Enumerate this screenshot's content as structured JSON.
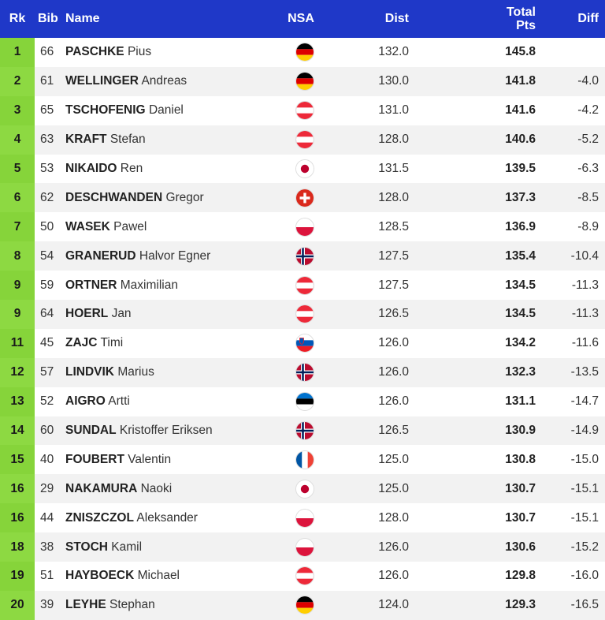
{
  "headers": {
    "rk": "Rk",
    "bib": "Bib",
    "name": "Name",
    "nsa": "NSA",
    "dist": "Dist",
    "total_line1": "Total",
    "total_line2": "Pts",
    "diff": "Diff"
  },
  "rows": [
    {
      "rk": "1",
      "bib": "66",
      "last": "PASCHKE",
      "first": "Pius",
      "nsa": "GER",
      "flag_icon": "germany-flag-icon",
      "dist": "132.0",
      "total": "145.8",
      "diff": ""
    },
    {
      "rk": "2",
      "bib": "61",
      "last": "WELLINGER",
      "first": "Andreas",
      "nsa": "GER",
      "flag_icon": "germany-flag-icon",
      "dist": "130.0",
      "total": "141.8",
      "diff": "-4.0"
    },
    {
      "rk": "3",
      "bib": "65",
      "last": "TSCHOFENIG",
      "first": "Daniel",
      "nsa": "AUT",
      "flag_icon": "austria-flag-icon",
      "dist": "131.0",
      "total": "141.6",
      "diff": "-4.2"
    },
    {
      "rk": "4",
      "bib": "63",
      "last": "KRAFT",
      "first": "Stefan",
      "nsa": "AUT",
      "flag_icon": "austria-flag-icon",
      "dist": "128.0",
      "total": "140.6",
      "diff": "-5.2"
    },
    {
      "rk": "5",
      "bib": "53",
      "last": "NIKAIDO",
      "first": "Ren",
      "nsa": "JPN",
      "flag_icon": "japan-flag-icon",
      "dist": "131.5",
      "total": "139.5",
      "diff": "-6.3"
    },
    {
      "rk": "6",
      "bib": "62",
      "last": "DESCHWANDEN",
      "first": "Gregor",
      "nsa": "SUI",
      "flag_icon": "switzerland-flag-icon",
      "dist": "128.0",
      "total": "137.3",
      "diff": "-8.5"
    },
    {
      "rk": "7",
      "bib": "50",
      "last": "WASEK",
      "first": "Pawel",
      "nsa": "POL",
      "flag_icon": "poland-flag-icon",
      "dist": "128.5",
      "total": "136.9",
      "diff": "-8.9"
    },
    {
      "rk": "8",
      "bib": "54",
      "last": "GRANERUD",
      "first": "Halvor Egner",
      "nsa": "NOR",
      "flag_icon": "norway-flag-icon",
      "dist": "127.5",
      "total": "135.4",
      "diff": "-10.4"
    },
    {
      "rk": "9",
      "bib": "59",
      "last": "ORTNER",
      "first": "Maximilian",
      "nsa": "AUT",
      "flag_icon": "austria-flag-icon",
      "dist": "127.5",
      "total": "134.5",
      "diff": "-11.3"
    },
    {
      "rk": "9",
      "bib": "64",
      "last": "HOERL",
      "first": "Jan",
      "nsa": "AUT",
      "flag_icon": "austria-flag-icon",
      "dist": "126.5",
      "total": "134.5",
      "diff": "-11.3"
    },
    {
      "rk": "11",
      "bib": "45",
      "last": "ZAJC",
      "first": "Timi",
      "nsa": "SLO",
      "flag_icon": "slovenia-flag-icon",
      "dist": "126.0",
      "total": "134.2",
      "diff": "-11.6"
    },
    {
      "rk": "12",
      "bib": "57",
      "last": "LINDVIK",
      "first": "Marius",
      "nsa": "NOR",
      "flag_icon": "norway-flag-icon",
      "dist": "126.0",
      "total": "132.3",
      "diff": "-13.5"
    },
    {
      "rk": "13",
      "bib": "52",
      "last": "AIGRO",
      "first": "Artti",
      "nsa": "EST",
      "flag_icon": "estonia-flag-icon",
      "dist": "126.0",
      "total": "131.1",
      "diff": "-14.7"
    },
    {
      "rk": "14",
      "bib": "60",
      "last": "SUNDAL",
      "first": "Kristoffer Eriksen",
      "nsa": "NOR",
      "flag_icon": "norway-flag-icon",
      "dist": "126.5",
      "total": "130.9",
      "diff": "-14.9"
    },
    {
      "rk": "15",
      "bib": "40",
      "last": "FOUBERT",
      "first": "Valentin",
      "nsa": "FRA",
      "flag_icon": "france-flag-icon",
      "dist": "125.0",
      "total": "130.8",
      "diff": "-15.0"
    },
    {
      "rk": "16",
      "bib": "29",
      "last": "NAKAMURA",
      "first": "Naoki",
      "nsa": "JPN",
      "flag_icon": "japan-flag-icon",
      "dist": "125.0",
      "total": "130.7",
      "diff": "-15.1"
    },
    {
      "rk": "16",
      "bib": "44",
      "last": "ZNISZCZOL",
      "first": "Aleksander",
      "nsa": "POL",
      "flag_icon": "poland-flag-icon",
      "dist": "128.0",
      "total": "130.7",
      "diff": "-15.1"
    },
    {
      "rk": "18",
      "bib": "38",
      "last": "STOCH",
      "first": "Kamil",
      "nsa": "POL",
      "flag_icon": "poland-flag-icon",
      "dist": "126.0",
      "total": "130.6",
      "diff": "-15.2"
    },
    {
      "rk": "19",
      "bib": "51",
      "last": "HAYBOECK",
      "first": "Michael",
      "nsa": "AUT",
      "flag_icon": "austria-flag-icon",
      "dist": "126.0",
      "total": "129.8",
      "diff": "-16.0"
    },
    {
      "rk": "20",
      "bib": "39",
      "last": "LEYHE",
      "first": "Stephan",
      "nsa": "GER",
      "flag_icon": "germany-flag-icon",
      "dist": "124.0",
      "total": "129.3",
      "diff": "-16.5"
    }
  ],
  "colors": {
    "header_bg": "#1f38c8",
    "rank_bg": "#86d43a",
    "row_alt_bg": "#f2f2f2"
  }
}
